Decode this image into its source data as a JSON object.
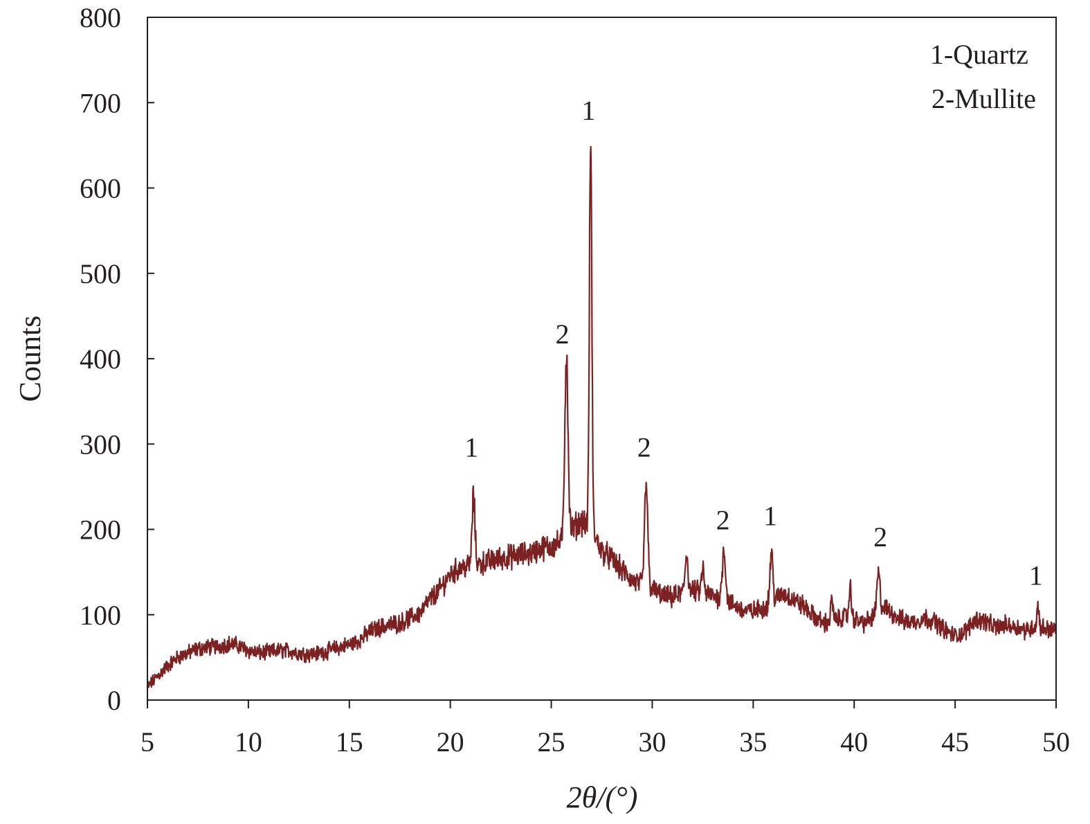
{
  "chart_data": {
    "type": "line",
    "xlabel": "2θ/(°)",
    "ylabel": "Counts",
    "xlim": [
      5,
      50
    ],
    "ylim": [
      0,
      800
    ],
    "xticks": [
      5,
      10,
      15,
      20,
      25,
      30,
      35,
      40,
      45,
      50
    ],
    "yticks": [
      0,
      100,
      200,
      300,
      400,
      500,
      600,
      700,
      800
    ],
    "grid": false,
    "line_color": "#7b2121",
    "legend_position": "top-right",
    "legend": [
      "1-Quartz",
      "2-Mullite"
    ],
    "profile": [
      [
        5.0,
        15
      ],
      [
        5.5,
        28
      ],
      [
        6.0,
        40
      ],
      [
        6.5,
        50
      ],
      [
        7.0,
        55
      ],
      [
        7.5,
        60
      ],
      [
        8.0,
        62
      ],
      [
        8.5,
        63
      ],
      [
        9.0,
        66
      ],
      [
        9.5,
        64
      ],
      [
        10.0,
        58
      ],
      [
        10.5,
        55
      ],
      [
        11.0,
        56
      ],
      [
        11.5,
        58
      ],
      [
        12.0,
        58
      ],
      [
        12.5,
        55
      ],
      [
        13.0,
        54
      ],
      [
        13.5,
        55
      ],
      [
        14.0,
        58
      ],
      [
        14.5,
        62
      ],
      [
        15.0,
        65
      ],
      [
        15.5,
        70
      ],
      [
        16.0,
        80
      ],
      [
        16.5,
        85
      ],
      [
        17.0,
        88
      ],
      [
        17.5,
        90
      ],
      [
        18.0,
        96
      ],
      [
        18.5,
        102
      ],
      [
        19.0,
        118
      ],
      [
        19.5,
        130
      ],
      [
        20.0,
        148
      ],
      [
        20.5,
        155
      ],
      [
        21.0,
        158
      ],
      [
        21.5,
        160
      ],
      [
        22.0,
        163
      ],
      [
        22.5,
        166
      ],
      [
        23.0,
        168
      ],
      [
        23.5,
        170
      ],
      [
        24.0,
        172
      ],
      [
        24.5,
        178
      ],
      [
        25.0,
        180
      ],
      [
        25.5,
        185
      ],
      [
        26.0,
        200
      ],
      [
        26.5,
        210
      ],
      [
        27.0,
        200
      ],
      [
        27.5,
        175
      ],
      [
        28.0,
        165
      ],
      [
        28.5,
        152
      ],
      [
        29.0,
        140
      ],
      [
        29.5,
        135
      ],
      [
        30.0,
        130
      ],
      [
        30.5,
        122
      ],
      [
        31.0,
        120
      ],
      [
        31.5,
        126
      ],
      [
        32.0,
        128
      ],
      [
        32.5,
        126
      ],
      [
        33.0,
        122
      ],
      [
        33.5,
        118
      ],
      [
        34.0,
        112
      ],
      [
        34.5,
        105
      ],
      [
        35.0,
        104
      ],
      [
        35.5,
        108
      ],
      [
        36.0,
        116
      ],
      [
        36.5,
        125
      ],
      [
        37.0,
        118
      ],
      [
        37.5,
        110
      ],
      [
        38.0,
        98
      ],
      [
        38.5,
        90
      ],
      [
        39.0,
        92
      ],
      [
        39.5,
        98
      ],
      [
        40.0,
        95
      ],
      [
        40.5,
        90
      ],
      [
        41.0,
        98
      ],
      [
        41.5,
        108
      ],
      [
        42.0,
        100
      ],
      [
        42.5,
        92
      ],
      [
        43.0,
        92
      ],
      [
        43.5,
        96
      ],
      [
        44.0,
        92
      ],
      [
        44.5,
        82
      ],
      [
        45.0,
        75
      ],
      [
        45.5,
        80
      ],
      [
        46.0,
        95
      ],
      [
        46.5,
        92
      ],
      [
        47.0,
        85
      ],
      [
        47.5,
        88
      ],
      [
        48.0,
        86
      ],
      [
        48.5,
        82
      ],
      [
        49.0,
        86
      ],
      [
        49.5,
        84
      ],
      [
        50.0,
        82
      ]
    ],
    "noise_amplitude": 9,
    "sample_step": 0.02,
    "peaks": [
      {
        "x": 21.15,
        "height": 80,
        "width": 0.07
      },
      {
        "x": 25.75,
        "height": 215,
        "width": 0.08
      },
      {
        "x": 26.95,
        "height": 458,
        "width": 0.06
      },
      {
        "x": 29.7,
        "height": 120,
        "width": 0.08
      },
      {
        "x": 31.7,
        "height": 45,
        "width": 0.07
      },
      {
        "x": 32.5,
        "height": 28,
        "width": 0.06
      },
      {
        "x": 33.55,
        "height": 60,
        "width": 0.08
      },
      {
        "x": 35.9,
        "height": 60,
        "width": 0.07
      },
      {
        "x": 38.9,
        "height": 25,
        "width": 0.06
      },
      {
        "x": 39.8,
        "height": 35,
        "width": 0.06
      },
      {
        "x": 41.2,
        "height": 45,
        "width": 0.08
      },
      {
        "x": 49.1,
        "height": 25,
        "width": 0.05
      }
    ],
    "peak_labels": [
      {
        "x": 21.05,
        "y": 285,
        "text": "1"
      },
      {
        "x": 25.55,
        "y": 418,
        "text": "2"
      },
      {
        "x": 26.85,
        "y": 680,
        "text": "1"
      },
      {
        "x": 29.6,
        "y": 285,
        "text": "2"
      },
      {
        "x": 33.5,
        "y": 200,
        "text": "2"
      },
      {
        "x": 35.85,
        "y": 205,
        "text": "1"
      },
      {
        "x": 41.3,
        "y": 180,
        "text": "2"
      },
      {
        "x": 49.0,
        "y": 135,
        "text": "1"
      }
    ]
  }
}
